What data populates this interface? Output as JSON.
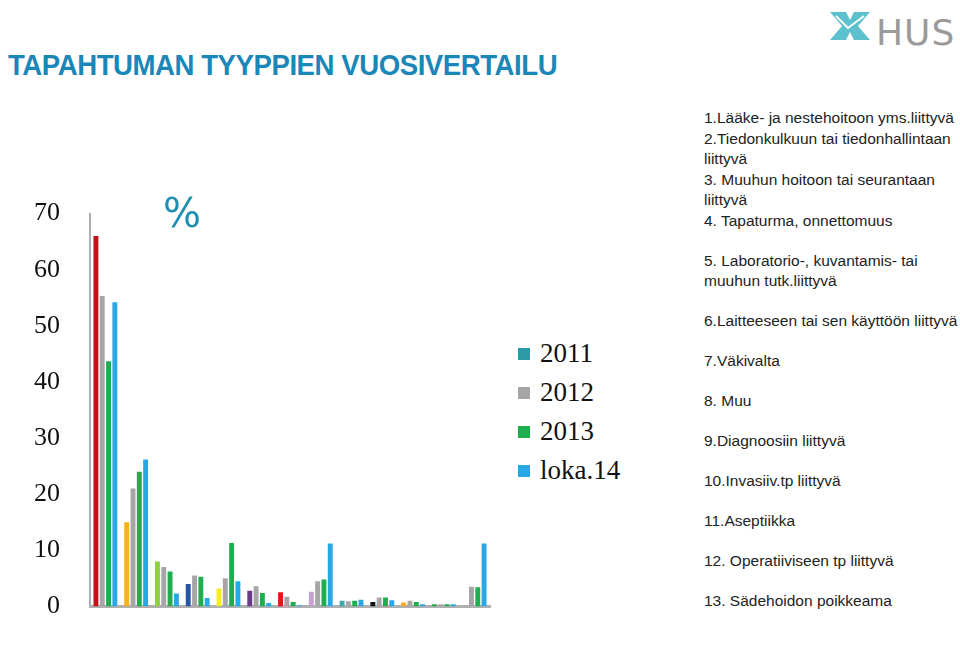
{
  "chart_data": {
    "type": "bar",
    "title": "TAPAHTUMAN TYYPPIEN VUOSIVERTAILU",
    "y_label": "%",
    "annotations": [
      "HUS"
    ],
    "categories": [
      "1.Lääke- ja nestehoitoon yms.liittyvä",
      "2.Tiedonkulkuun tai tiedonhallintaan liittyvä",
      "3. Muuhun hoitoon tai seurantaan liittyvä",
      "4. Tapaturma, onnettomuus",
      "5. Laboratorio-, kuvantamis- tai muuhun tutk.liittyvä",
      "6.Laitteeseen tai sen käyttöön liittyvä",
      "7.Väkivalta",
      "8. Muu",
      "9.Diagnoosiin liittyvä",
      "10.Invasiiv.tp liittyvä",
      "11.Aseptiikka",
      "12. Operatiiviseen tp liittyvä",
      "13. Sädehoidon poikkeama"
    ],
    "series": [
      {
        "name": "2011",
        "color": "#2a9aa6",
        "colors": [
          "#c0141c",
          "#f6b21b",
          "#8ccf3f",
          "#2456a6",
          "#f4ee1e",
          "#6b3a8c",
          "#e01a1a",
          "#c7a0d0",
          "#3fa8b0",
          "#111111",
          "#f5a623",
          "#2aa84a",
          "#999999"
        ],
        "values": [
          66,
          15,
          8,
          4,
          3.2,
          2.8,
          2.5,
          2.6,
          1,
          0.8,
          0.7,
          0.4,
          null
        ]
      },
      {
        "name": "2012",
        "color": "#a6a6a6",
        "values": [
          55.3,
          21,
          7,
          5.5,
          5,
          3.6,
          1.7,
          4.5,
          0.9,
          1.6,
          1,
          0.4,
          3.5
        ]
      },
      {
        "name": "2013",
        "color": "#1fae4f",
        "values": [
          43.7,
          24,
          6.2,
          5.3,
          11.3,
          2.4,
          0.8,
          4.8,
          1,
          1.6,
          0.8,
          0.4,
          3.4
        ]
      },
      {
        "name": "loka.14",
        "color": "#2aa8e6",
        "values": [
          54.2,
          26.2,
          2.3,
          1.5,
          4.5,
          0.6,
          0.2,
          11.2,
          1.2,
          1.1,
          0.4,
          0.4,
          11.2
        ]
      }
    ],
    "ylim": [
      0,
      70
    ],
    "yticks": [
      0,
      10,
      20,
      30,
      40,
      50,
      60,
      70
    ],
    "grid": false,
    "legend": "right",
    "tick_labels": "y",
    "data_labels": false
  }
}
